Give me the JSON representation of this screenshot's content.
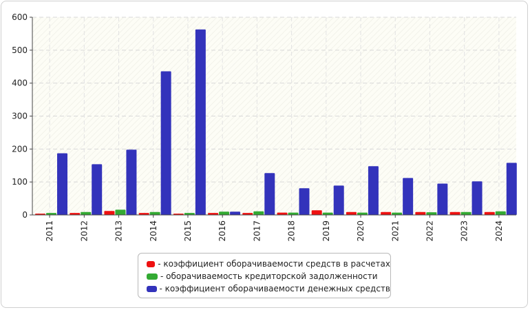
{
  "chart_data": {
    "type": "bar",
    "title": "",
    "xlabel": "",
    "ylabel": "",
    "categories": [
      "2011",
      "2012",
      "2013",
      "2014",
      "2015",
      "2016",
      "2017",
      "2018",
      "2019",
      "2020",
      "2021",
      "2022",
      "2023",
      "2024"
    ],
    "ylim": [
      0,
      600
    ],
    "yticks": [
      "0",
      "100",
      "200",
      "300",
      "400",
      "500",
      "600"
    ],
    "grid": true,
    "legend_position": "bottom",
    "series": [
      {
        "name": "- коэффициент оборачиваемости средств в расчетах",
        "color": "#ee1111",
        "values": [
          4,
          6,
          12,
          6,
          4,
          6,
          6,
          7,
          14,
          9,
          9,
          9,
          9,
          9
        ]
      },
      {
        "name": "- оборачиваемость кредиторской задолженности",
        "color": "#33aa33",
        "values": [
          6,
          9,
          16,
          9,
          6,
          10,
          11,
          7,
          7,
          7,
          7,
          8,
          9,
          11
        ]
      },
      {
        "name": "- коэффициент оборачиваемости денежных средств",
        "color": "#3333bb",
        "values": [
          187,
          154,
          198,
          436,
          563,
          10,
          127,
          81,
          89,
          148,
          112,
          95,
          102,
          158
        ]
      }
    ]
  }
}
